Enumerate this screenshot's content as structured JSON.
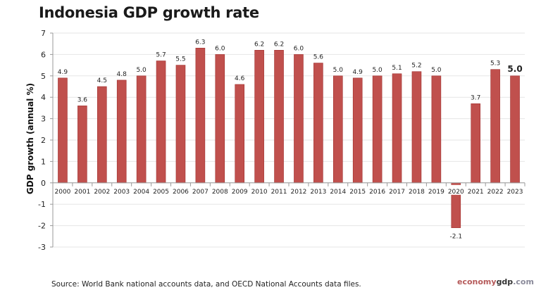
{
  "chart_data": {
    "type": "bar",
    "title": "Indonesia GDP growth rate",
    "xlabel": "",
    "ylabel": "GDP growth (annual %)",
    "ylim": [
      -3,
      7
    ],
    "yticks": [
      "-3",
      "-2",
      "-1",
      "0",
      "1",
      "2",
      "3",
      "4",
      "5",
      "6",
      "7"
    ],
    "grid": true,
    "categories": [
      "2000",
      "2001",
      "2002",
      "2003",
      "2004",
      "2005",
      "2006",
      "2007",
      "2008",
      "2009",
      "2010",
      "2011",
      "2012",
      "2013",
      "2014",
      "2015",
      "2016",
      "2017",
      "2018",
      "2019",
      "2020",
      "2021",
      "2022",
      "2023"
    ],
    "values": [
      4.9,
      3.6,
      4.5,
      4.8,
      5.0,
      5.7,
      5.5,
      6.3,
      6.0,
      4.6,
      6.2,
      6.2,
      6.0,
      5.6,
      5.0,
      4.9,
      5.0,
      5.1,
      5.2,
      5.0,
      -2.1,
      3.7,
      5.3,
      5.0
    ],
    "data_labels": [
      "4.9",
      "3.6",
      "4.5",
      "4.8",
      "5.0",
      "5.7",
      "5.5",
      "6.3",
      "6.0",
      "4.6",
      "6.2",
      "6.2",
      "6.0",
      "5.6",
      "5.0",
      "4.9",
      "5.0",
      "5.1",
      "5.2",
      "5.0",
      "-2.1",
      "3.7",
      "5.3",
      "5.0"
    ],
    "bar_color": "#c0504d"
  },
  "source": "Source:  World Bank national accounts data, and OECD National Accounts data files.",
  "logo": {
    "part1": "economy",
    "part2": "gdp",
    "part3": ".com"
  }
}
